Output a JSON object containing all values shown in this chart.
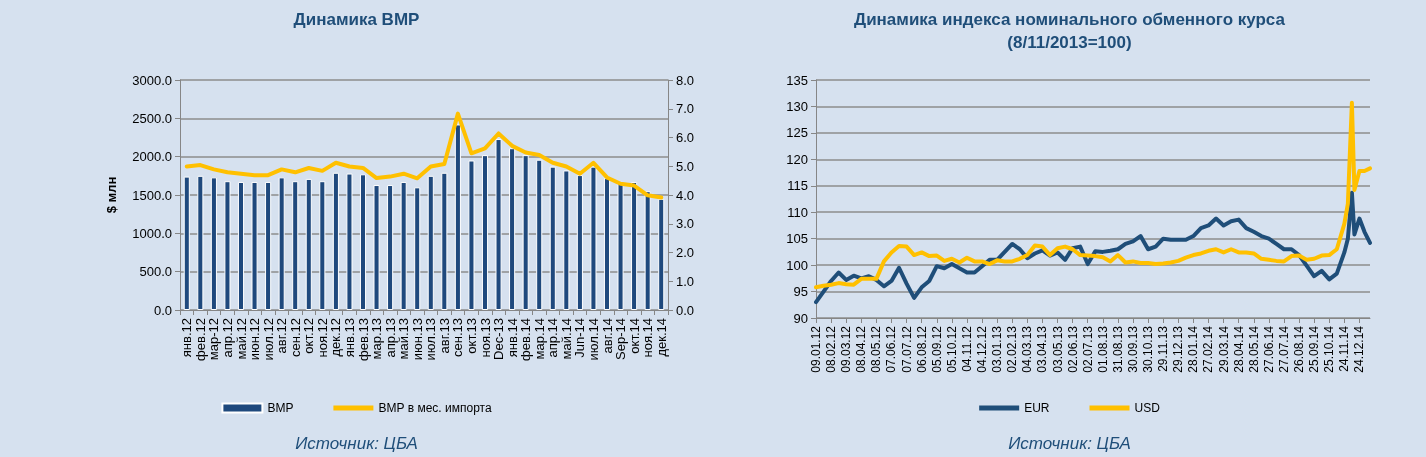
{
  "chart_data": [
    {
      "type": "bar",
      "title": "Динамика ВМР",
      "ylabel": "$ млн",
      "categories": [
        "янв.12",
        "фев.12",
        "мар-12",
        "апр.12",
        "май.12",
        "июн.12",
        "июл.12",
        "авг.12",
        "сен.12",
        "окт.12",
        "ноя.12",
        "дек.12",
        "янв.13",
        "фев.13",
        "мар.13",
        "апр.13",
        "май.13",
        "июн.13",
        "июл.13",
        "авг.13",
        "сен.13",
        "окт.13",
        "ноя.13",
        "Dec-13",
        "янв.14",
        "фев.14",
        "мар.14",
        "апр.14",
        "май.14",
        "Jun-14",
        "июл.14",
        "авг.14",
        "Sep-14",
        "окт.14",
        "ноя.14",
        "дек.14"
      ],
      "series": [
        {
          "name": "ВМР",
          "color": "#1f497d",
          "values": [
            1740,
            1750,
            1730,
            1680,
            1670,
            1670,
            1670,
            1730,
            1680,
            1710,
            1680,
            1790,
            1780,
            1770,
            1630,
            1630,
            1670,
            1600,
            1750,
            1790,
            2420,
            1950,
            2020,
            2230,
            2110,
            2020,
            1960,
            1870,
            1820,
            1760,
            1870,
            1720,
            1660,
            1670,
            1550,
            1450
          ]
        },
        {
          "name": "ВМР в мес. импорта",
          "type": "line",
          "axis": "y2",
          "color": "#ffc000",
          "values": [
            4.99,
            5.04,
            4.89,
            4.79,
            4.74,
            4.69,
            4.69,
            4.89,
            4.79,
            4.94,
            4.84,
            5.12,
            4.99,
            4.94,
            4.59,
            4.64,
            4.74,
            4.58,
            4.99,
            5.08,
            6.83,
            5.45,
            5.62,
            6.14,
            5.71,
            5.48,
            5.39,
            5.12,
            4.99,
            4.74,
            5.12,
            4.61,
            4.39,
            4.33,
            3.99,
            3.91
          ]
        }
      ],
      "ylim": [
        0,
        3000
      ],
      "yticks": [
        {
          "value": 0,
          "label": "0.0"
        },
        {
          "value": 500,
          "label": "500.0"
        },
        {
          "value": 1000,
          "label": "1000.0"
        },
        {
          "value": 1500,
          "label": "1500.0"
        },
        {
          "value": 2000,
          "label": "2000.0"
        },
        {
          "value": 2500,
          "label": "2500.0"
        },
        {
          "value": 3000,
          "label": "3000.0"
        }
      ],
      "y2lim": [
        0,
        8
      ],
      "y2ticks": [
        {
          "value": 0,
          "label": "0.0"
        },
        {
          "value": 1,
          "label": "1.0"
        },
        {
          "value": 2,
          "label": "2.0"
        },
        {
          "value": 3,
          "label": "3.0"
        },
        {
          "value": 4,
          "label": "4.0"
        },
        {
          "value": 5,
          "label": "5.0"
        },
        {
          "value": 6,
          "label": "6.0"
        },
        {
          "value": 7,
          "label": "7.0"
        },
        {
          "value": 8,
          "label": "8.0"
        }
      ],
      "grid": "y",
      "legend": "bottom",
      "marker": "none",
      "annotations": [
        "Источник: ЦБА"
      ]
    },
    {
      "type": "line",
      "title": "Динамика индекса номинального обменного курса",
      "subtitle": "(8/11/2013=100)",
      "x": [
        "2012-01-09",
        "2012-01-24",
        "2012-02-08",
        "2012-02-23",
        "2012-03-09",
        "2012-03-24",
        "2012-04-08",
        "2012-04-23",
        "2012-05-08",
        "2012-05-23",
        "2012-06-07",
        "2012-06-22",
        "2012-07-07",
        "2012-07-22",
        "2012-08-06",
        "2012-08-21",
        "2012-09-05",
        "2012-09-20",
        "2012-10-05",
        "2012-10-20",
        "2012-11-04",
        "2012-11-19",
        "2012-12-04",
        "2012-12-19",
        "2013-01-03",
        "2013-01-18",
        "2013-02-02",
        "2013-02-17",
        "2013-03-04",
        "2013-03-19",
        "2013-04-03",
        "2013-04-18",
        "2013-05-03",
        "2013-05-18",
        "2013-06-02",
        "2013-06-17",
        "2013-07-02",
        "2013-07-17",
        "2013-08-01",
        "2013-08-16",
        "2013-08-31",
        "2013-09-15",
        "2013-09-30",
        "2013-10-15",
        "2013-10-30",
        "2013-11-14",
        "2013-11-29",
        "2013-12-14",
        "2013-12-29",
        "2014-01-13",
        "2014-01-28",
        "2014-02-12",
        "2014-02-27",
        "2014-03-14",
        "2014-03-29",
        "2014-04-13",
        "2014-04-28",
        "2014-05-13",
        "2014-05-28",
        "2014-06-12",
        "2014-06-27",
        "2014-07-12",
        "2014-07-27",
        "2014-08-11",
        "2014-08-26",
        "2014-09-10",
        "2014-09-25",
        "2014-10-10",
        "2014-10-25",
        "2014-11-09",
        "2014-11-24",
        "2014-12-01",
        "2014-12-09",
        "2014-12-14",
        "2014-12-24",
        "2015-01-03",
        "2015-01-14"
      ],
      "series": [
        {
          "name": "EUR",
          "color": "#1f4e79",
          "values": [
            93.0,
            95.0,
            97.0,
            98.6,
            97.2,
            98.0,
            97.5,
            97.9,
            97.2,
            96.0,
            97.0,
            99.5,
            96.5,
            93.8,
            95.8,
            97.0,
            99.8,
            99.4,
            100.2,
            99.4,
            98.6,
            98.6,
            99.8,
            101.0,
            101.0,
            102.5,
            104.0,
            103.0,
            101.3,
            102.2,
            102.8,
            101.8,
            102.4,
            101.0,
            103.2,
            103.5,
            100.2,
            102.6,
            102.5,
            102.7,
            103.0,
            104.0,
            104.5,
            105.5,
            103.0,
            103.5,
            105.0,
            104.8,
            104.8,
            104.8,
            105.5,
            107.0,
            107.5,
            108.8,
            107.5,
            108.3,
            108.6,
            107.0,
            106.3,
            105.5,
            105.0,
            104.0,
            103.0,
            103.0,
            101.9,
            99.9,
            97.9,
            98.9,
            97.3,
            98.4,
            102.4,
            105.0,
            113.7,
            105.8,
            108.8,
            106.3,
            104.2
          ]
        },
        {
          "name": "USD",
          "color": "#ffc000",
          "values": [
            95.8,
            96.1,
            96.3,
            96.6,
            96.4,
            96.3,
            97.4,
            97.4,
            97.4,
            100.7,
            102.4,
            103.6,
            103.5,
            101.9,
            102.4,
            101.7,
            101.8,
            100.8,
            101.2,
            100.5,
            101.4,
            100.7,
            100.7,
            100.2,
            100.9,
            100.7,
            100.7,
            101.2,
            101.9,
            103.7,
            103.5,
            101.9,
            103.2,
            103.5,
            103.0,
            101.9,
            101.8,
            101.7,
            101.5,
            100.7,
            101.9,
            100.5,
            100.7,
            100.4,
            100.4,
            100.2,
            100.3,
            100.5,
            100.8,
            101.4,
            101.9,
            102.2,
            102.7,
            103.0,
            102.4,
            103.0,
            102.4,
            102.4,
            102.2,
            101.2,
            101.0,
            100.8,
            100.7,
            101.7,
            101.8,
            101.0,
            101.2,
            101.8,
            101.9,
            103.0,
            107.8,
            111.6,
            130.7,
            114.2,
            117.8,
            117.8,
            118.3
          ]
        }
      ],
      "xlim": [
        "2012-01-09",
        "2015-01-14"
      ],
      "xticks": [
        {
          "value": "2012-01-09",
          "label": "09.01.12"
        },
        {
          "value": "2012-02-08",
          "label": "08.02.12"
        },
        {
          "value": "2012-03-09",
          "label": "09.03.12"
        },
        {
          "value": "2012-04-08",
          "label": "08.04.12"
        },
        {
          "value": "2012-05-08",
          "label": "08.05.12"
        },
        {
          "value": "2012-06-07",
          "label": "07.06.12"
        },
        {
          "value": "2012-07-07",
          "label": "07.07.12"
        },
        {
          "value": "2012-08-06",
          "label": "06.08.12"
        },
        {
          "value": "2012-09-05",
          "label": "05.09.12"
        },
        {
          "value": "2012-10-05",
          "label": "05.10.12"
        },
        {
          "value": "2012-11-04",
          "label": "04.11.12"
        },
        {
          "value": "2012-12-04",
          "label": "04.12.12"
        },
        {
          "value": "2013-01-03",
          "label": "03.01.13"
        },
        {
          "value": "2013-02-02",
          "label": "02.02.13"
        },
        {
          "value": "2013-03-04",
          "label": "04.03.13"
        },
        {
          "value": "2013-04-03",
          "label": "03.04.13"
        },
        {
          "value": "2013-05-03",
          "label": "03.05.13"
        },
        {
          "value": "2013-06-02",
          "label": "02.06.13"
        },
        {
          "value": "2013-07-02",
          "label": "02.07.13"
        },
        {
          "value": "2013-08-01",
          "label": "01.08.13"
        },
        {
          "value": "2013-08-31",
          "label": "31.08.13"
        },
        {
          "value": "2013-09-30",
          "label": "30.09.13"
        },
        {
          "value": "2013-10-30",
          "label": "30.10.13"
        },
        {
          "value": "2013-11-29",
          "label": "29.11.13"
        },
        {
          "value": "2013-12-29",
          "label": "29.12.13"
        },
        {
          "value": "2014-01-28",
          "label": "28.01.14"
        },
        {
          "value": "2014-02-27",
          "label": "27.02.14"
        },
        {
          "value": "2014-03-29",
          "label": "29.03.14"
        },
        {
          "value": "2014-04-28",
          "label": "28.04.14"
        },
        {
          "value": "2014-05-28",
          "label": "28.05.14"
        },
        {
          "value": "2014-06-27",
          "label": "27.06.14"
        },
        {
          "value": "2014-07-27",
          "label": "27.07.14"
        },
        {
          "value": "2014-08-26",
          "label": "26.08.14"
        },
        {
          "value": "2014-09-25",
          "label": "25.09.14"
        },
        {
          "value": "2014-10-25",
          "label": "25.10.14"
        },
        {
          "value": "2014-11-24",
          "label": "24.11.14"
        },
        {
          "value": "2014-12-24",
          "label": "24.12.14"
        }
      ],
      "ylim": [
        90,
        135
      ],
      "yticks": [
        90,
        95,
        100,
        105,
        110,
        115,
        120,
        125,
        130,
        135
      ],
      "grid": "y",
      "legend": "bottom",
      "marker": "none",
      "annotations": [
        "Источник: ЦБА"
      ]
    }
  ]
}
